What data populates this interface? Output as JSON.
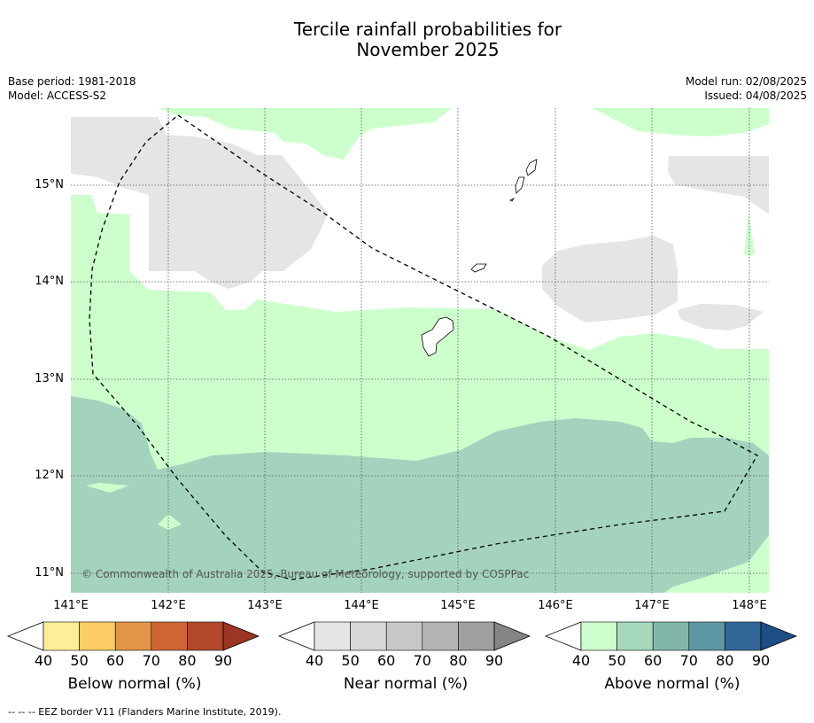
{
  "title": {
    "line1": "Tercile rainfall probabilities for",
    "line2": "November 2025"
  },
  "meta": {
    "base_period": "Base period: 1981-2018",
    "model": "Model: ACCESS-S2",
    "model_run": "Model run: 02/08/2025",
    "issued": "Issued: 04/08/2025"
  },
  "map": {
    "lat_labels": [
      "15°N",
      "14°N",
      "13°N",
      "12°N",
      "11°N"
    ],
    "lon_labels": [
      "141°E",
      "142°E",
      "143°E",
      "144°E",
      "145°E",
      "146°E",
      "147°E",
      "148°E"
    ],
    "copyright": "© Commonwealth of Australia 2025, Bureau of Meteorology, supported by COSPPac",
    "colors": {
      "near_normal_fill": "#e6e6e6",
      "above_normal_fill": "#ccffcc",
      "above_50_fill": "#a3d3bd",
      "land_outline": "#000000"
    }
  },
  "colorbars": [
    {
      "title": "Below normal (%)",
      "ticks": [
        "40",
        "50",
        "60",
        "70",
        "80",
        "90"
      ],
      "colors": [
        "#ffffff",
        "#ffee99",
        "#fdcc66",
        "#e29547",
        "#cf6533",
        "#b24a29",
        "#9b3524"
      ]
    },
    {
      "title": "Near normal (%)",
      "ticks": [
        "40",
        "50",
        "60",
        "70",
        "80",
        "90"
      ],
      "colors": [
        "#ffffff",
        "#e5e5e5",
        "#d7d7d7",
        "#c7c7c7",
        "#b3b3b3",
        "#a0a0a0",
        "#858585"
      ]
    },
    {
      "title": "Above normal (%)",
      "ticks": [
        "40",
        "50",
        "60",
        "70",
        "80",
        "90"
      ],
      "colors": [
        "#ffffff",
        "#ccfdcc",
        "#a5d8bc",
        "#83b6ab",
        "#5d97a3",
        "#336799",
        "#1e4e86"
      ]
    }
  ],
  "footer": "--  --  -- EEZ border V11 (Flanders Marine Institute, 2019)."
}
